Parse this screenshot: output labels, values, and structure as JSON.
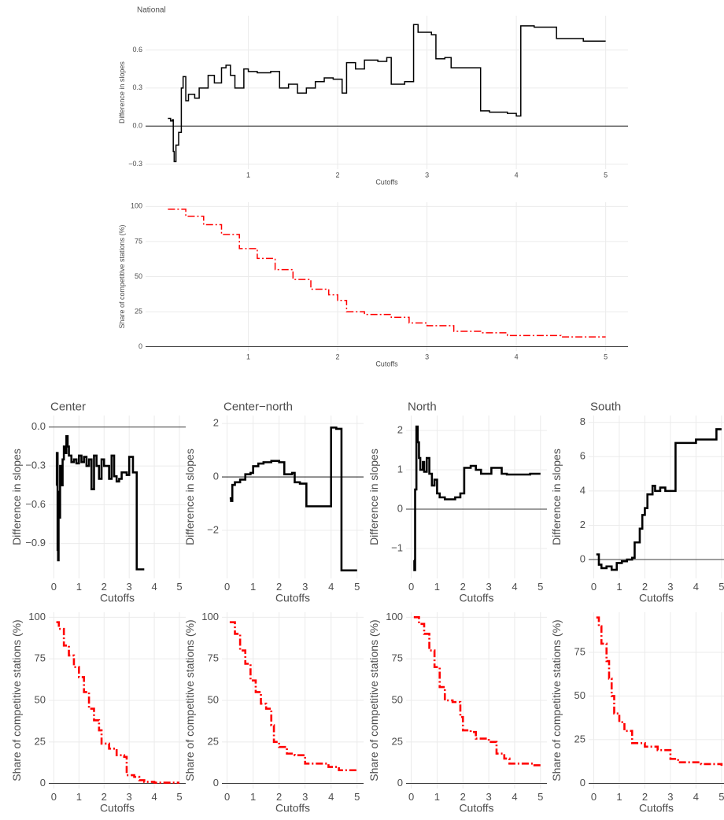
{
  "chart_data": [
    {
      "type": "line",
      "title": "National",
      "xlabel": "Cutoffs",
      "ylabel": "Difference in slopes",
      "color": "#000000",
      "line_style": "solid",
      "step": true,
      "grid": true,
      "hline": 0,
      "xlim": [
        -0.15,
        5.25
      ],
      "ylim": [
        -0.34,
        0.87
      ],
      "xticks": [
        1,
        2,
        3,
        4,
        5
      ],
      "yticks": [
        {
          "value": -0.3,
          "label": "−0.3"
        },
        {
          "value": 0,
          "label": "0.0"
        },
        0.3,
        0.6
      ],
      "x": [
        0.1,
        0.13,
        0.15,
        0.16,
        0.17,
        0.19,
        0.22,
        0.25,
        0.27,
        0.3,
        0.33,
        0.4,
        0.45,
        0.55,
        0.62,
        0.7,
        0.75,
        0.8,
        0.85,
        0.95,
        1.0,
        1.1,
        1.25,
        1.35,
        1.45,
        1.55,
        1.65,
        1.75,
        1.85,
        1.95,
        2.05,
        2.1,
        2.2,
        2.3,
        2.45,
        2.55,
        2.6,
        2.75,
        2.85,
        2.9,
        3.05,
        3.1,
        3.2,
        3.27,
        3.6,
        3.7,
        3.9,
        4.0,
        4.05,
        4.2,
        4.45,
        4.75,
        5.0
      ],
      "values": [
        0.06,
        0.04,
        0.05,
        -0.2,
        -0.28,
        -0.15,
        -0.05,
        0.3,
        0.39,
        0.2,
        0.25,
        0.22,
        0.3,
        0.4,
        0.34,
        0.46,
        0.48,
        0.4,
        0.3,
        0.45,
        0.43,
        0.42,
        0.43,
        0.3,
        0.33,
        0.26,
        0.3,
        0.35,
        0.38,
        0.37,
        0.26,
        0.5,
        0.45,
        0.52,
        0.51,
        0.54,
        0.33,
        0.35,
        0.8,
        0.74,
        0.72,
        0.53,
        0.54,
        0.46,
        0.12,
        0.11,
        0.1,
        0.08,
        0.79,
        0.78,
        0.69,
        0.67,
        0.67
      ]
    },
    {
      "type": "line",
      "xlabel": "Cutoffs",
      "ylabel": "Share of competitive stations (%)",
      "color": "#ff0000",
      "line_style": "dashdot",
      "step": true,
      "grid": true,
      "hline": 0,
      "xlim": [
        -0.15,
        5.25
      ],
      "ylim": [
        -3,
        103
      ],
      "xticks": [
        1,
        2,
        3,
        4,
        5
      ],
      "yticks": [
        0,
        25,
        50,
        75,
        100
      ],
      "x": [
        0.1,
        0.3,
        0.5,
        0.7,
        0.9,
        1.1,
        1.3,
        1.5,
        1.7,
        1.9,
        2.0,
        2.1,
        2.3,
        2.6,
        2.8,
        3.0,
        3.3,
        3.6,
        3.9,
        4.2,
        4.5,
        5.0
      ],
      "values": [
        98,
        93,
        87,
        80,
        70,
        63,
        55,
        48,
        41,
        37,
        33,
        25,
        23,
        21,
        17,
        15,
        11,
        10,
        8,
        8,
        7,
        7
      ]
    },
    {
      "type": "line",
      "title": "Center",
      "xlabel": "Cutoffs",
      "ylabel": "Difference in slopes",
      "color": "#000000",
      "line_style": "solid",
      "step": true,
      "grid": true,
      "hline": 0,
      "xlim": [
        -0.2,
        5.25
      ],
      "ylim": [
        -1.17,
        0.09
      ],
      "xticks": [
        0,
        1,
        2,
        3,
        4,
        5
      ],
      "yticks": [
        {
          "value": -0.9,
          "label": "−0.9"
        },
        {
          "value": -0.6,
          "label": "−0.6"
        },
        {
          "value": -0.3,
          "label": "−0.3"
        },
        {
          "value": 0,
          "label": "0.0"
        }
      ],
      "x": [
        0.1,
        0.12,
        0.15,
        0.17,
        0.19,
        0.22,
        0.25,
        0.3,
        0.35,
        0.4,
        0.45,
        0.5,
        0.55,
        0.6,
        0.7,
        0.8,
        0.9,
        1.0,
        1.1,
        1.2,
        1.3,
        1.4,
        1.5,
        1.6,
        1.7,
        1.8,
        1.9,
        2.0,
        2.2,
        2.3,
        2.4,
        2.5,
        2.6,
        2.7,
        2.9,
        3.0,
        3.15,
        3.3,
        3.6
      ],
      "values": [
        -0.45,
        -0.2,
        -0.95,
        -1.03,
        -0.5,
        -0.7,
        -0.3,
        -0.45,
        -0.25,
        -0.15,
        -0.2,
        -0.07,
        -0.15,
        -0.22,
        -0.27,
        -0.25,
        -0.28,
        -0.22,
        -0.27,
        -0.23,
        -0.3,
        -0.25,
        -0.48,
        -0.22,
        -0.3,
        -0.4,
        -0.25,
        -0.3,
        -0.4,
        -0.22,
        -0.38,
        -0.42,
        -0.4,
        -0.35,
        -0.37,
        -0.23,
        -0.35,
        -1.1,
        -1.1
      ]
    },
    {
      "type": "line",
      "title": "Center−north",
      "xlabel": "Cutoffs",
      "ylabel": "Difference in slopes",
      "color": "#000000",
      "line_style": "solid",
      "step": true,
      "grid": true,
      "hline": 0,
      "xlim": [
        -0.2,
        5.25
      ],
      "ylim": [
        -3.8,
        2.3
      ],
      "xticks": [
        0,
        1,
        2,
        3,
        4,
        5
      ],
      "yticks": [
        {
          "value": -2,
          "label": "−2"
        },
        0,
        2
      ],
      "x": [
        0.1,
        0.15,
        0.2,
        0.3,
        0.5,
        0.7,
        0.9,
        1.0,
        1.2,
        1.4,
        1.7,
        2.0,
        2.2,
        2.5,
        2.6,
        2.8,
        3.05,
        3.9,
        4.0,
        4.2,
        4.4,
        5.0
      ],
      "values": [
        -0.8,
        -0.9,
        -0.3,
        -0.2,
        -0.1,
        0.1,
        0.15,
        0.4,
        0.5,
        0.55,
        0.6,
        0.55,
        0.1,
        0.15,
        -0.2,
        -0.25,
        -1.1,
        -1.1,
        1.85,
        1.8,
        -3.5,
        -3.5
      ]
    },
    {
      "type": "line",
      "title": "North",
      "xlabel": "Cutoffs",
      "ylabel": "Difference in slopes",
      "color": "#000000",
      "line_style": "solid",
      "step": true,
      "grid": true,
      "hline": 0,
      "xlim": [
        -0.2,
        5.25
      ],
      "ylim": [
        -1.76,
        2.38
      ],
      "xticks": [
        0,
        1,
        2,
        3,
        4,
        5
      ],
      "yticks": [
        {
          "value": -1,
          "label": "−1"
        },
        0,
        1,
        2
      ],
      "x": [
        0.1,
        0.12,
        0.15,
        0.2,
        0.25,
        0.3,
        0.35,
        0.45,
        0.5,
        0.6,
        0.7,
        0.8,
        0.9,
        1.0,
        1.1,
        1.3,
        1.5,
        1.7,
        1.9,
        2.05,
        2.3,
        2.5,
        2.7,
        2.9,
        3.1,
        3.5,
        3.7,
        4.3,
        4.6,
        5.0
      ],
      "values": [
        -1.3,
        -1.55,
        0.5,
        2.1,
        1.7,
        1.3,
        1.0,
        1.2,
        0.95,
        1.3,
        0.9,
        0.6,
        0.75,
        0.4,
        0.3,
        0.25,
        0.25,
        0.3,
        0.4,
        1.05,
        1.1,
        1.0,
        0.9,
        0.9,
        1.05,
        0.9,
        0.88,
        0.88,
        0.9,
        0.9
      ]
    },
    {
      "type": "line",
      "title": "South",
      "xlabel": "Cutoffs",
      "ylabel": "Difference in slopes",
      "color": "#000000",
      "line_style": "solid",
      "step": true,
      "grid": true,
      "hline": 0,
      "xlim": [
        -0.2,
        5.25
      ],
      "ylim": [
        -1.1,
        8.4
      ],
      "xticks": [
        0,
        1,
        2,
        3,
        4,
        5
      ],
      "yticks": [
        0,
        2,
        4,
        6,
        8
      ],
      "x": [
        0.1,
        0.2,
        0.3,
        0.5,
        0.7,
        0.9,
        1.1,
        1.3,
        1.5,
        1.6,
        1.8,
        1.9,
        2.0,
        2.1,
        2.3,
        2.4,
        2.6,
        2.8,
        3.2,
        3.9,
        4.0,
        4.7,
        4.8,
        5.0
      ],
      "values": [
        0.3,
        -0.3,
        -0.5,
        -0.4,
        -0.6,
        -0.2,
        -0.1,
        0.0,
        0.1,
        1.0,
        1.8,
        2.6,
        3.0,
        3.8,
        4.3,
        4.0,
        4.2,
        4.0,
        6.8,
        6.8,
        7.0,
        7.0,
        7.6,
        7.6
      ]
    },
    {
      "type": "line",
      "xlabel": "Cutoffs",
      "ylabel": "Share of competitive stations (%)",
      "color": "#ff0000",
      "line_style": "dashdot",
      "step": true,
      "grid": true,
      "hline": 0,
      "xlim": [
        -0.2,
        5.25
      ],
      "ylim": [
        -3,
        103
      ],
      "xticks": [
        0,
        1,
        2,
        3,
        4,
        5
      ],
      "yticks": [
        0,
        25,
        50,
        75,
        100
      ],
      "x": [
        0.1,
        0.2,
        0.4,
        0.6,
        0.8,
        1.0,
        1.2,
        1.4,
        1.6,
        1.8,
        1.9,
        2.2,
        2.5,
        2.8,
        2.9,
        3.2,
        3.4,
        3.6,
        4.0,
        5.0
      ],
      "values": [
        97,
        93,
        83,
        77,
        70,
        64,
        55,
        45,
        38,
        32,
        24,
        21,
        17,
        16,
        5,
        4,
        2,
        1,
        0.5,
        0.5
      ]
    },
    {
      "type": "line",
      "xlabel": "Cutoffs",
      "ylabel": "Share of competitive stations (%)",
      "color": "#ff0000",
      "line_style": "dashdot",
      "step": true,
      "grid": true,
      "hline": 0,
      "xlim": [
        -0.2,
        5.25
      ],
      "ylim": [
        -3,
        103
      ],
      "xticks": [
        0,
        1,
        2,
        3,
        4,
        5
      ],
      "yticks": [
        0,
        25,
        50,
        75,
        100
      ],
      "x": [
        0.1,
        0.3,
        0.5,
        0.7,
        0.9,
        1.1,
        1.3,
        1.5,
        1.7,
        1.8,
        2.0,
        2.3,
        2.6,
        3.0,
        3.5,
        3.9,
        4.3,
        5.0
      ],
      "values": [
        97,
        90,
        80,
        72,
        62,
        55,
        48,
        45,
        35,
        25,
        22,
        18,
        17,
        12,
        12,
        10,
        8,
        7
      ]
    },
    {
      "type": "line",
      "xlabel": "Cutoffs",
      "ylabel": "Share of competitive stations (%)",
      "color": "#ff0000",
      "line_style": "dashdot",
      "step": true,
      "grid": true,
      "hline": 0,
      "xlim": [
        -0.2,
        5.25
      ],
      "ylim": [
        -3,
        103
      ],
      "xticks": [
        0,
        1,
        2,
        3,
        4,
        5
      ],
      "yticks": [
        0,
        25,
        50,
        75,
        100
      ],
      "x": [
        0.1,
        0.3,
        0.5,
        0.7,
        0.9,
        1.1,
        1.3,
        1.6,
        1.9,
        2.0,
        2.3,
        2.5,
        3.0,
        3.3,
        3.6,
        3.8,
        4.2,
        4.7,
        5.0
      ],
      "values": [
        100,
        96,
        90,
        80,
        70,
        58,
        50,
        49,
        40,
        32,
        31,
        27,
        25,
        18,
        15,
        12,
        12,
        11,
        11
      ]
    },
    {
      "type": "line",
      "xlabel": "Cutoffs",
      "ylabel": "Share of competitive stations (%)",
      "color": "#ff0000",
      "line_style": "dashdot",
      "step": true,
      "grid": true,
      "hline": 0,
      "xlim": [
        -0.2,
        5.25
      ],
      "ylim": [
        -3,
        98
      ],
      "xticks": [
        0,
        1,
        2,
        3,
        4,
        5
      ],
      "yticks": [
        0,
        25,
        50,
        75
      ],
      "x": [
        0.1,
        0.2,
        0.3,
        0.5,
        0.6,
        0.7,
        0.8,
        1.0,
        1.2,
        1.5,
        2.0,
        2.5,
        3.0,
        3.3,
        3.8,
        4.2,
        5.0
      ],
      "values": [
        95,
        90,
        80,
        70,
        60,
        50,
        40,
        35,
        30,
        23,
        21,
        19,
        14,
        12,
        12,
        11,
        10
      ]
    }
  ]
}
